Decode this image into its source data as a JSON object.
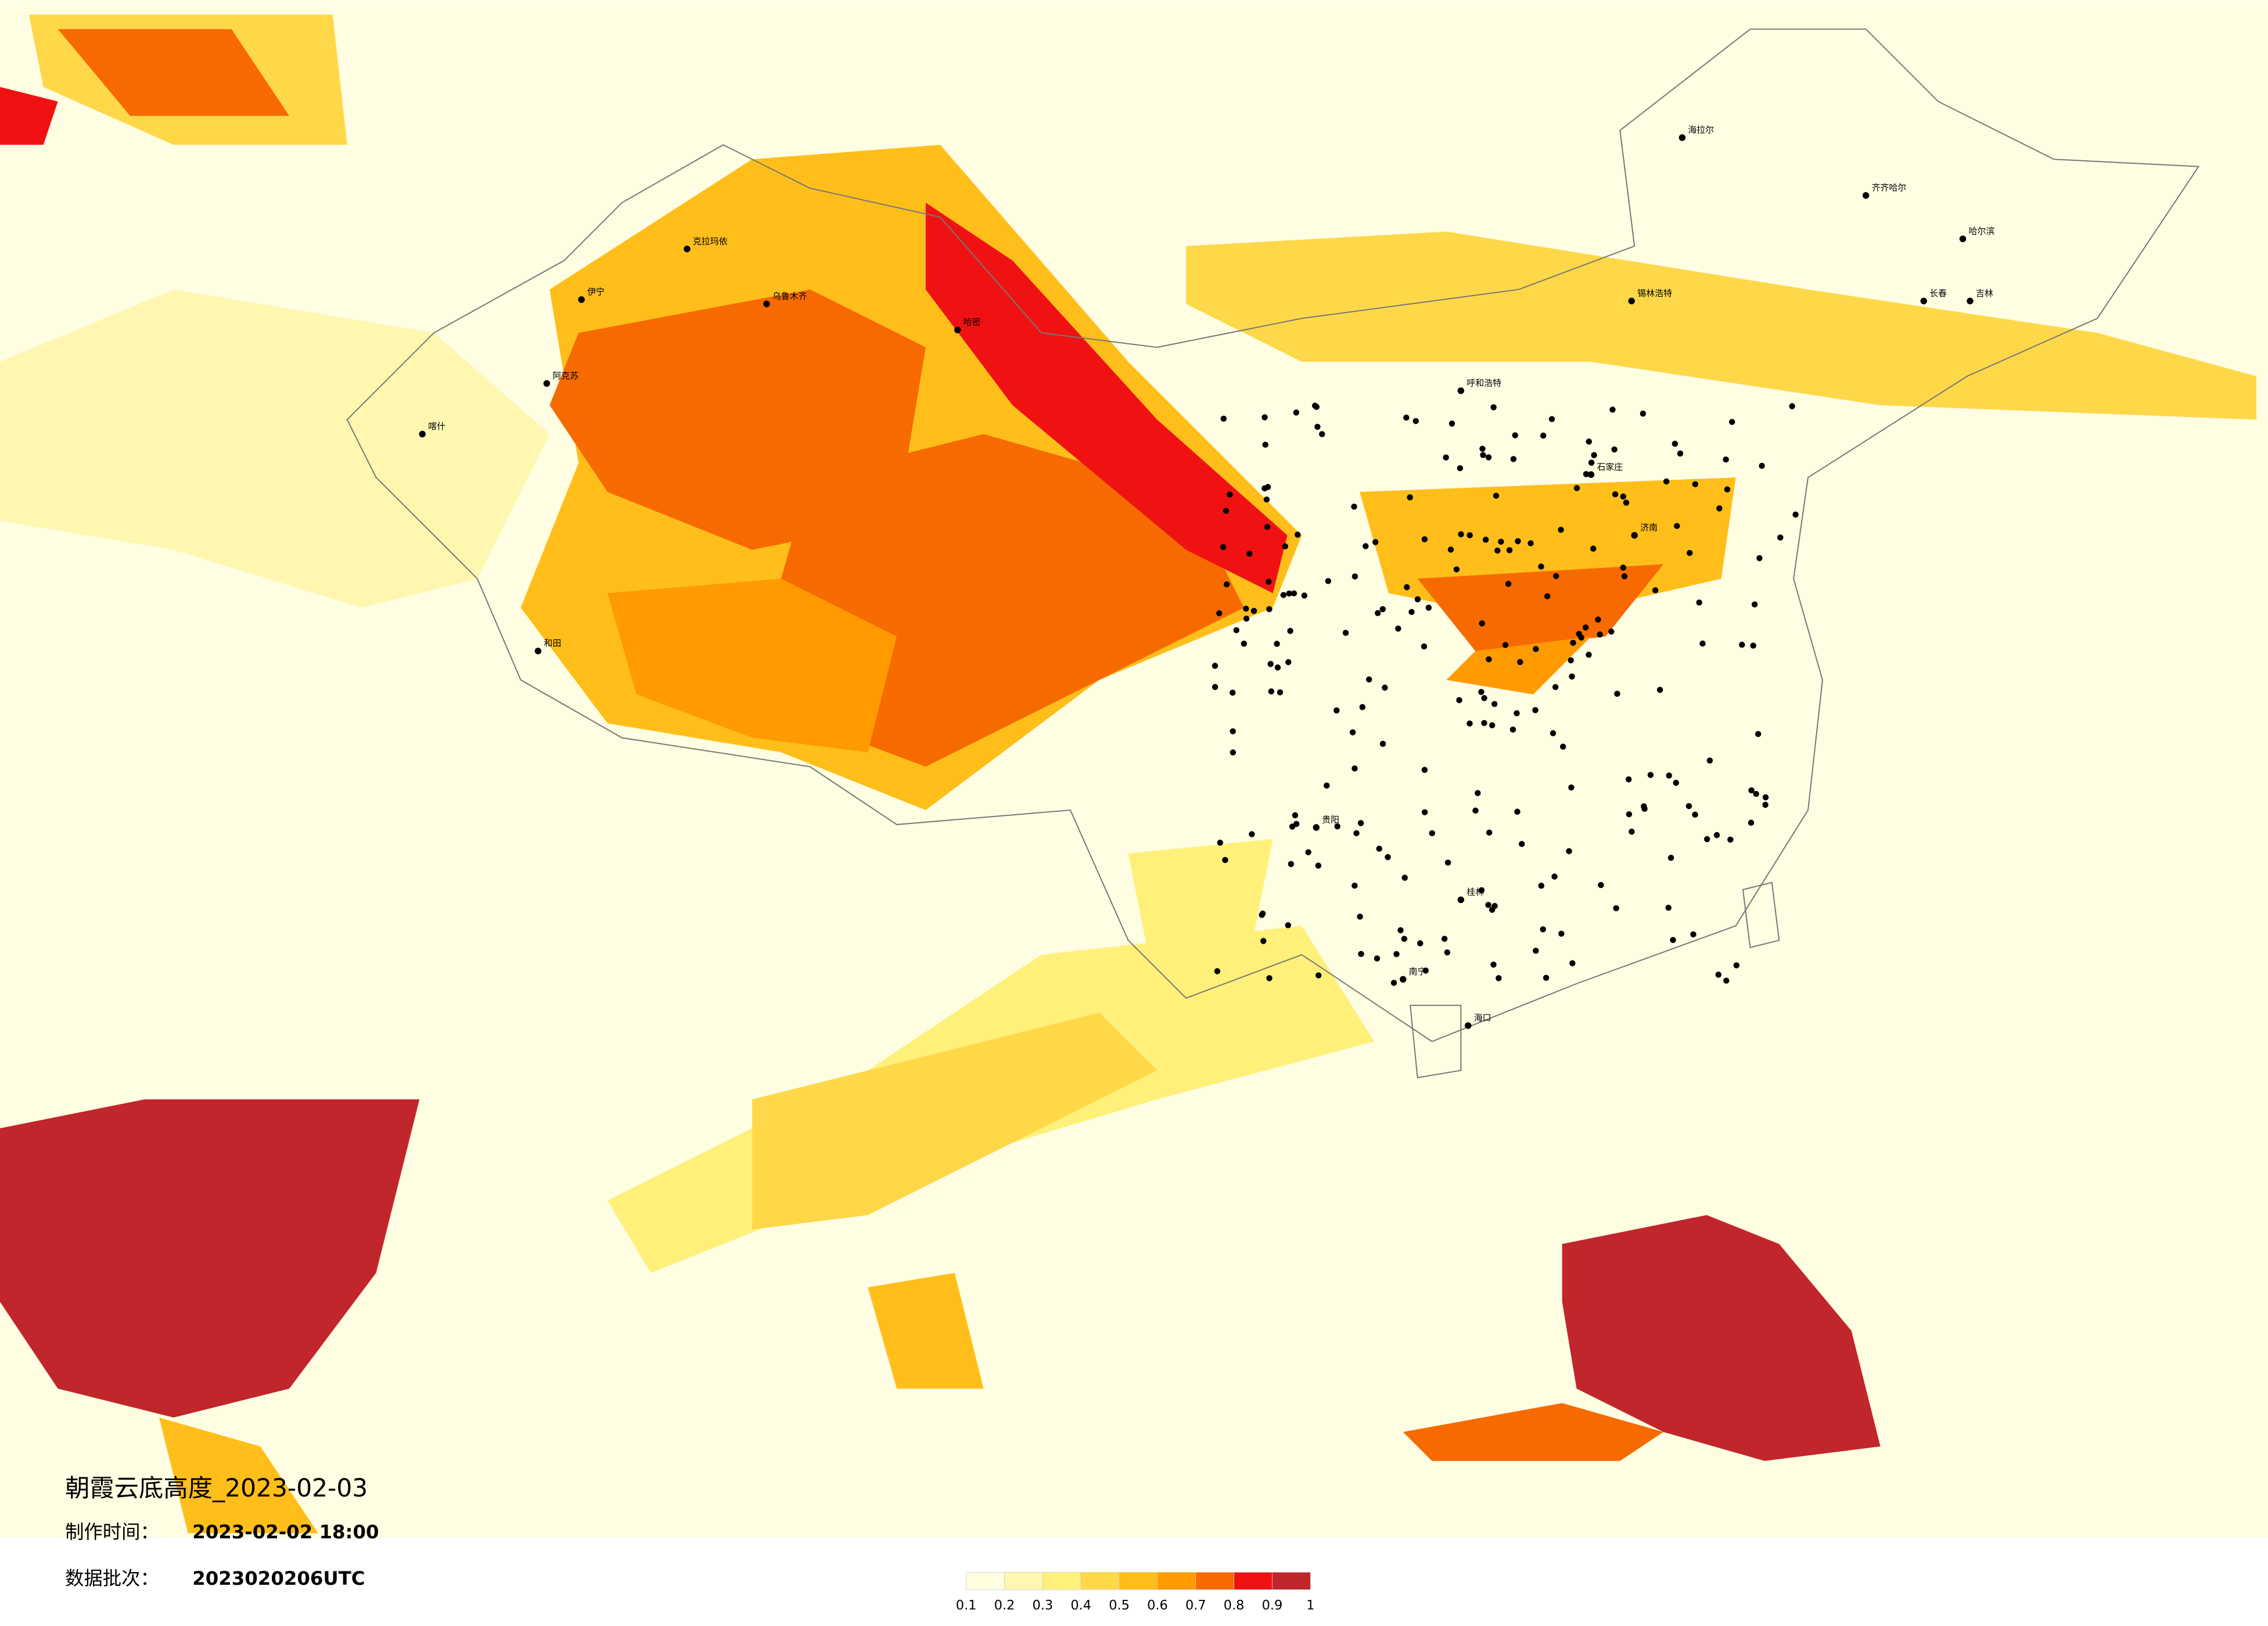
{
  "header": {
    "title": "朝霞云底高度_2023-02-03",
    "made_label": "制作时间：",
    "made_value": "2023-02-02 18:00",
    "batch_label": "数据批次：",
    "batch_value": "2023020206UTC"
  },
  "legend": {
    "ticks": [
      0.1,
      0.2,
      0.3,
      0.4,
      0.5,
      0.6,
      0.7,
      0.8,
      0.9,
      1
    ],
    "colors": [
      "#ffffe0",
      "#fff7b0",
      "#fff07a",
      "#ffd84a",
      "#ffbe1a",
      "#ff9a00",
      "#f76a00",
      "#f01212",
      "#c0262b"
    ]
  },
  "cities": [
    "克拉玛依",
    "乌鲁木齐",
    "伊宁",
    "阿克苏",
    "喀什",
    "和田",
    "哈密",
    "海拉尔",
    "齐齐哈尔",
    "哈尔滨",
    "长春",
    "吉林",
    "锡林浩特",
    "呼和浩特",
    "石家庄",
    "南宁",
    "桂林",
    "贵阳",
    "海口",
    "济南"
  ]
}
